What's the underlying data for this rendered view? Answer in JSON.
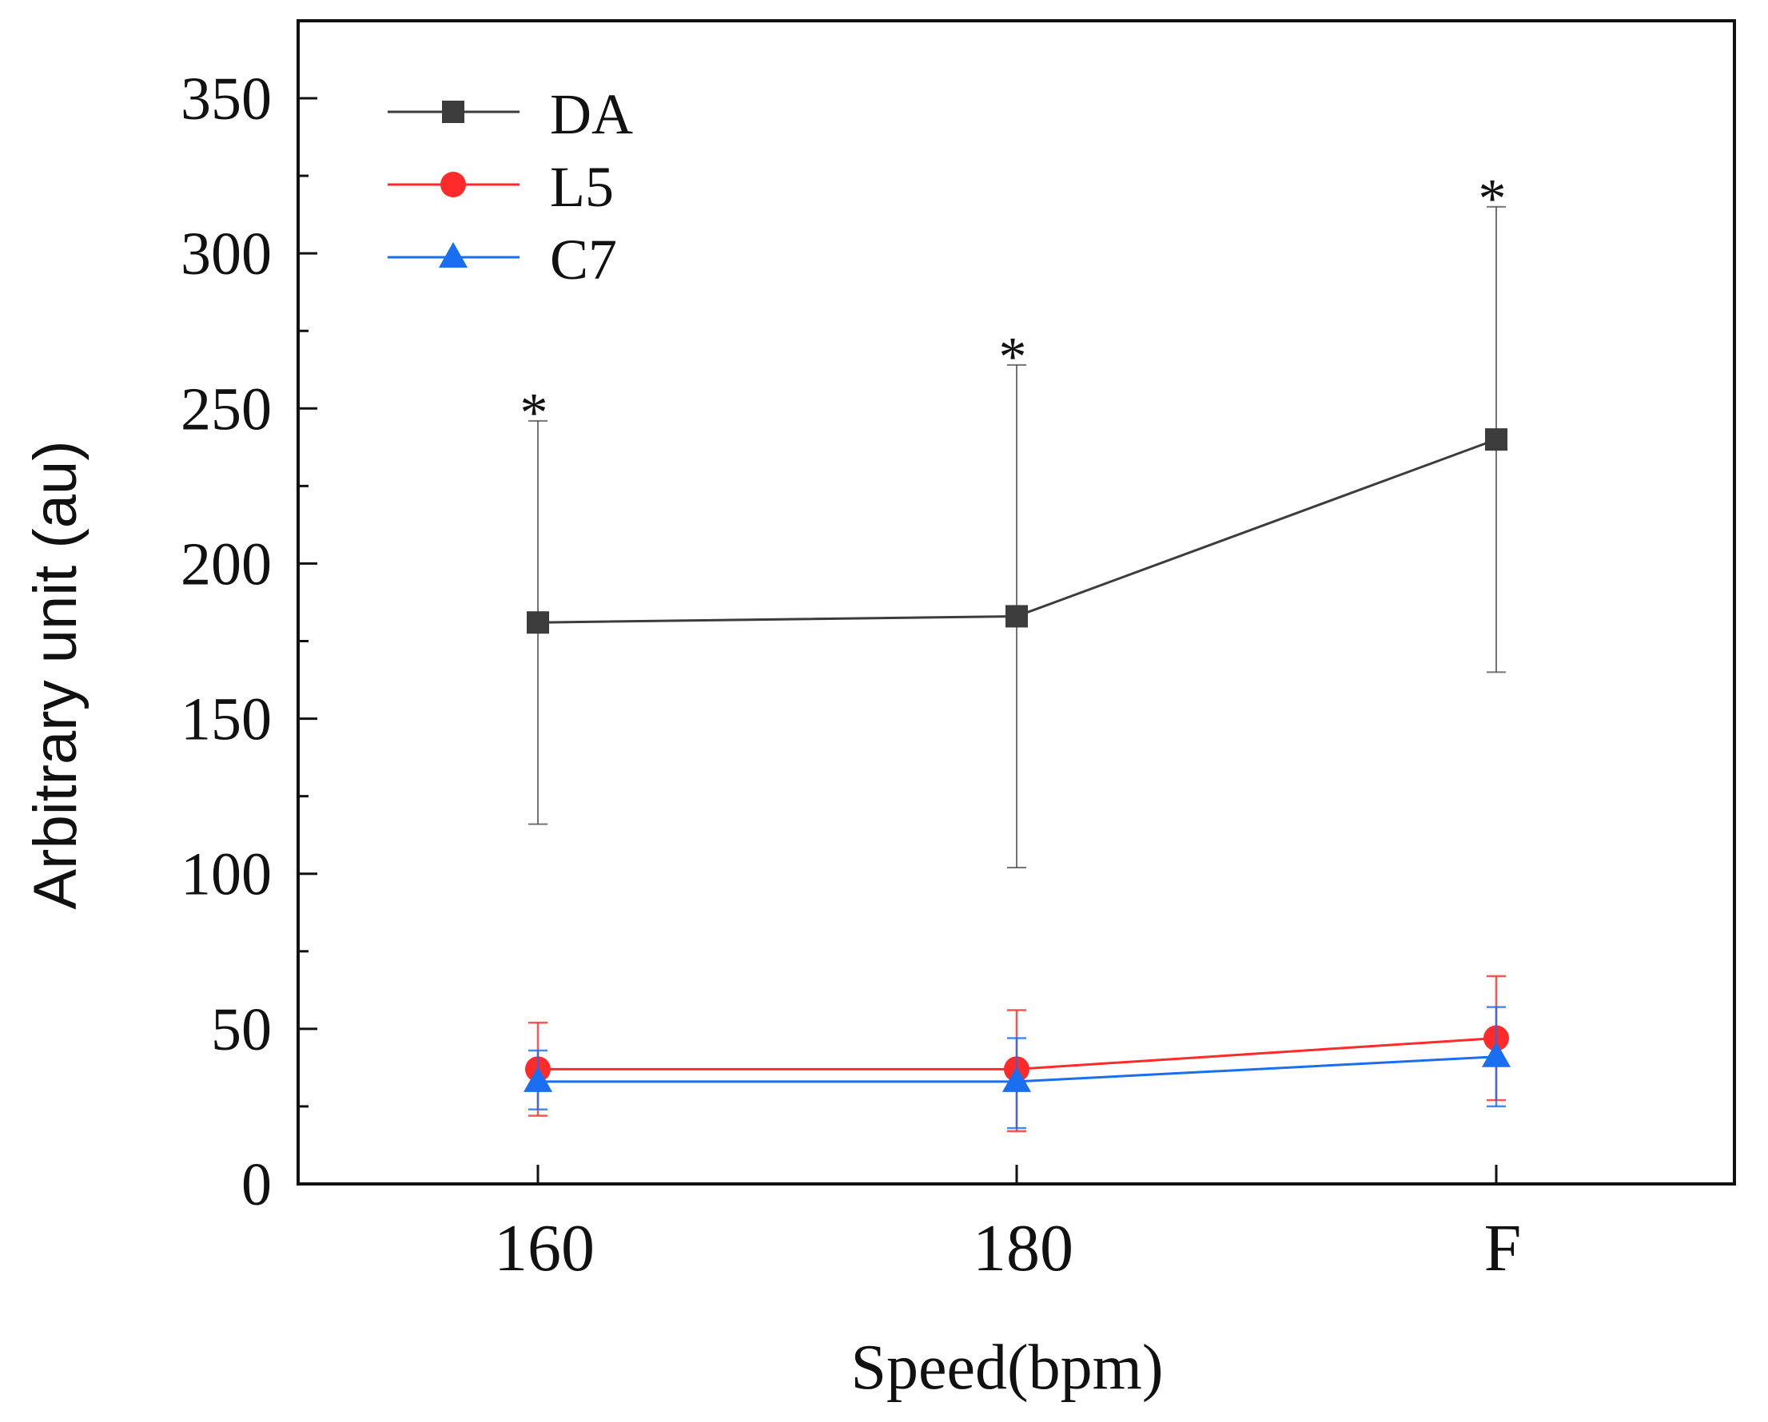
{
  "chart_data": {
    "type": "line",
    "title": "",
    "xlabel": "Speed(bpm)",
    "ylabel": "Arbitrary unit (au)",
    "categories": [
      "160",
      "180",
      "F"
    ],
    "ylim": [
      0,
      375
    ],
    "yticks": [
      0,
      50,
      100,
      150,
      200,
      250,
      300,
      350
    ],
    "grid": false,
    "legend_position": "top-left",
    "series": [
      {
        "name": "DA",
        "color": "#3c3c3c",
        "marker": "square",
        "values": [
          181,
          183,
          240
        ],
        "err_low": [
          116,
          102,
          165
        ],
        "err_high": [
          246,
          264,
          315
        ]
      },
      {
        "name": "L5",
        "color": "#ff2a2a",
        "marker": "circle",
        "values": [
          37,
          37,
          47
        ],
        "err_low": [
          22,
          17,
          27
        ],
        "err_high": [
          52,
          56,
          67
        ]
      },
      {
        "name": "C7",
        "color": "#1a6ef0",
        "marker": "triangle",
        "values": [
          33,
          33,
          41
        ],
        "err_low": [
          24,
          18,
          25
        ],
        "err_high": [
          43,
          47,
          57
        ]
      }
    ],
    "annotations": [
      {
        "text": "*",
        "category": "160",
        "value": 253
      },
      {
        "text": "*",
        "category": "180",
        "value": 271
      },
      {
        "text": "*",
        "category": "F",
        "value": 322
      }
    ]
  }
}
